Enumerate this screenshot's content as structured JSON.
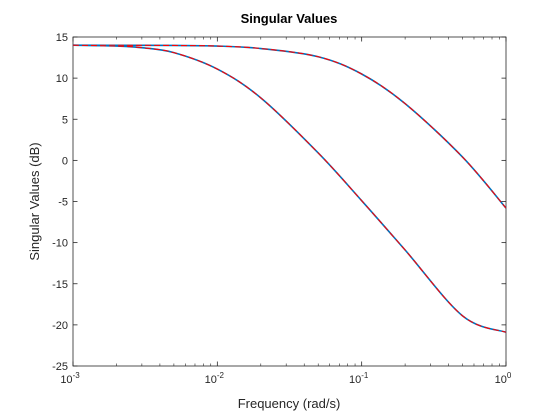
{
  "chart_data": {
    "type": "line",
    "title": "Singular Values",
    "xlabel": "Frequency (rad/s)",
    "ylabel": "Singular Values (dB)",
    "xscale": "log",
    "xlim": [
      0.001,
      1
    ],
    "ylim": [
      -25,
      15
    ],
    "x_ticks": [
      {
        "value": 0.001,
        "base": "10",
        "exp": "-3"
      },
      {
        "value": 0.01,
        "base": "10",
        "exp": "-2"
      },
      {
        "value": 0.1,
        "base": "10",
        "exp": "-1"
      },
      {
        "value": 1,
        "base": "10",
        "exp": "0"
      }
    ],
    "y_ticks": [
      15,
      10,
      5,
      0,
      -5,
      -10,
      -15,
      -20,
      -25
    ],
    "y_tick_labels": [
      "15",
      "10",
      "5",
      "0",
      "-5",
      "-10",
      "-15",
      "-20",
      "-25"
    ],
    "grid": false,
    "colors": {
      "overlay": "#ff0000",
      "base": "#0072bd",
      "axes": "#262626"
    },
    "series": [
      {
        "x": [
          0.001,
          0.002,
          0.005,
          0.01,
          0.02,
          0.05,
          0.1,
          0.2,
          0.5,
          1
        ],
        "values": [
          14,
          13.99,
          13.97,
          13.9,
          13.6,
          12.6,
          10.5,
          6.9,
          0.4,
          -5.8
        ]
      },
      {
        "x": [
          0.001,
          0.002,
          0.003,
          0.005,
          0.01,
          0.02,
          0.05,
          0.1,
          0.2,
          0.5,
          1
        ],
        "values": [
          14,
          13.9,
          13.7,
          13.1,
          11.1,
          7.6,
          0.9,
          -4.9,
          -10.9,
          -18.9,
          -20.9
        ]
      }
    ]
  }
}
